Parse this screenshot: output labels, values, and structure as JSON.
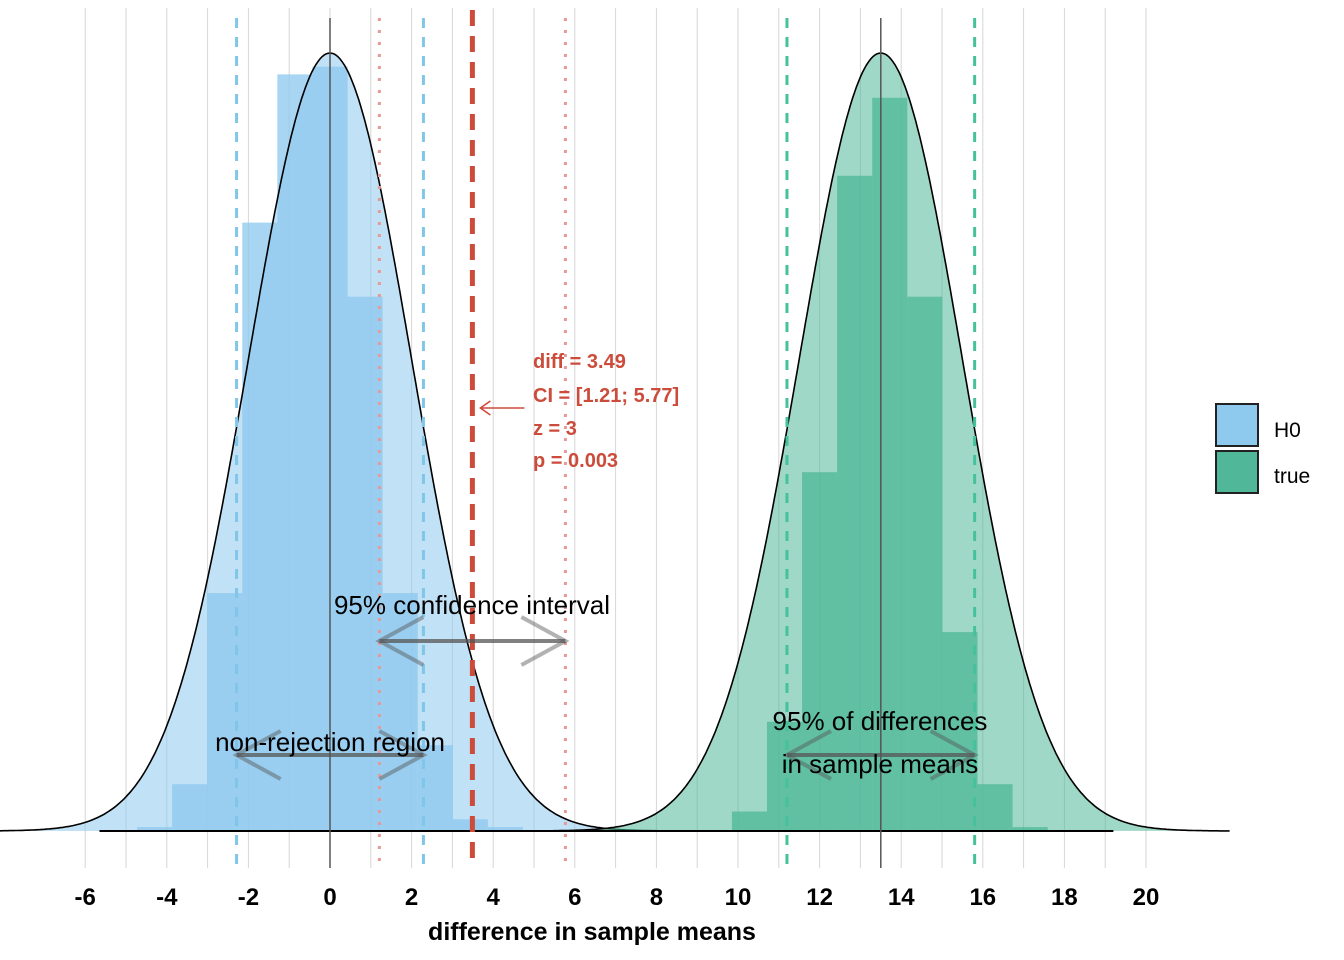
{
  "chart_data": {
    "type": "bar",
    "xlabel": "difference in sample means",
    "ylabel": "",
    "xlim": [
      -6.1,
      20.6
    ],
    "ylim": [
      0,
      0.2
    ],
    "xticks": [
      "-6",
      "-4",
      "-2",
      "0",
      "2",
      "4",
      "6",
      "8",
      "10",
      "12",
      "14",
      "16",
      "18",
      "20"
    ],
    "grid": "vertical",
    "legend_position": "right",
    "colors": {
      "H0": "#8ec9ee",
      "true": "#50b898",
      "observed": "#cc4c3b"
    },
    "series": [
      {
        "name": "H0",
        "color": "#8ec9ee",
        "mean": 0,
        "sd": 2,
        "bin_width": 0.86,
        "bin_starts": [
          -4.73,
          -3.87,
          -3.01,
          -2.15,
          -1.29,
          -0.43,
          0.43,
          1.29,
          2.15,
          3.01,
          3.87
        ],
        "density": [
          0.001,
          0.012,
          0.061,
          0.156,
          0.194,
          0.196,
          0.137,
          0.061,
          0.022,
          0.003,
          0.001
        ],
        "critical_bounds": [
          -2.29,
          2.29
        ]
      },
      {
        "name": "true",
        "color": "#50b898",
        "mean": 13.5,
        "sd": 2,
        "bin_width": 0.86,
        "bin_starts": [
          9.85,
          10.71,
          11.57,
          12.43,
          13.29,
          14.15,
          15.01,
          15.87,
          16.73
        ],
        "density": [
          0.005,
          0.028,
          0.092,
          0.168,
          0.188,
          0.137,
          0.051,
          0.012,
          0.001
        ],
        "bounds_95": [
          11.2,
          15.8
        ]
      }
    ],
    "observed": {
      "diff": 3.49,
      "ci": [
        1.21,
        5.77
      ],
      "labels": [
        "diff = 3.49",
        "CI = [1.21; 5.77]",
        "z = 3",
        "p = 0.003"
      ]
    },
    "annotations": {
      "ci_label": "95% confidence interval",
      "nonrejection_label": "non-rejection region",
      "diff_label_line1": "95% of differences",
      "diff_label_line2": "in sample means"
    },
    "legend": [
      {
        "label": "H0",
        "color": "#8ec9ee"
      },
      {
        "label": "true",
        "color": "#50b898"
      }
    ]
  }
}
